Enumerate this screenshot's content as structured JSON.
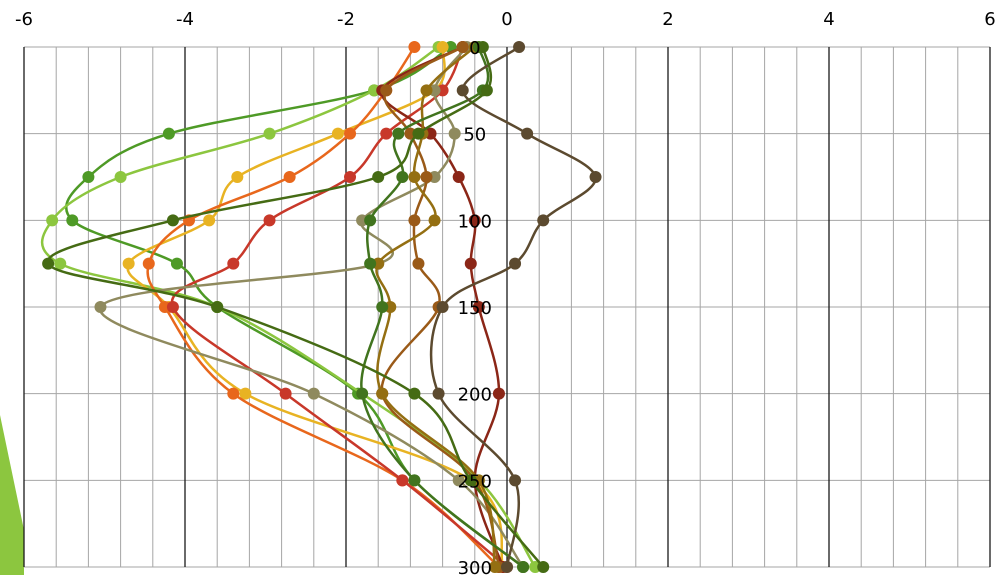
{
  "chart_data": {
    "type": "line",
    "title": "",
    "xlabel": "",
    "ylabel": "",
    "xlim": [
      -6,
      6
    ],
    "ylim": [
      0,
      300
    ],
    "y_inverted": true,
    "grid": true,
    "legend": "none",
    "x_major_ticks": [
      -6,
      -4,
      -2,
      0,
      2,
      4,
      6
    ],
    "y_major_ticks": [
      0,
      50,
      100,
      150,
      200,
      250,
      300
    ],
    "x_tick_labels": [
      "-6",
      "-4",
      "-2",
      "0",
      "2",
      "4",
      "6"
    ],
    "y_tick_labels": [
      "0",
      "50",
      "100",
      "150",
      "200",
      "250",
      "300"
    ],
    "depths": [
      0,
      25,
      50,
      75,
      100,
      125,
      150,
      200,
      250,
      300
    ],
    "series": [
      {
        "color": "#4e9a26",
        "x": [
          -0.7,
          -1.65,
          -4.2,
          -5.2,
          -5.4,
          -4.1,
          -3.6,
          -1.85,
          -1.15,
          0.2
        ]
      },
      {
        "color": "#8cc63f",
        "x": [
          -0.85,
          -1.65,
          -2.95,
          -4.8,
          -5.65,
          -5.55,
          -3.6,
          -1.8,
          -0.35,
          0.35
        ]
      },
      {
        "color": "#e8b323",
        "x": [
          -0.8,
          -0.9,
          -2.1,
          -3.35,
          -3.7,
          -4.7,
          -4.2,
          -3.25,
          -0.45,
          -0.05
        ]
      },
      {
        "color": "#e8671c",
        "x": [
          -1.15,
          -1.5,
          -1.95,
          -2.7,
          -3.95,
          -4.45,
          -4.25,
          -3.4,
          -1.3,
          -0.1
        ]
      },
      {
        "color": "#c8382a",
        "x": [
          -0.55,
          -0.8,
          -1.5,
          -1.95,
          -2.95,
          -3.4,
          -4.15,
          -2.75,
          -1.3,
          0.0
        ]
      },
      {
        "color": "#8b2617",
        "x": [
          -0.55,
          -1.55,
          -0.95,
          -0.6,
          -0.4,
          -0.45,
          -0.35,
          -0.1,
          -0.4,
          -0.05
        ]
      },
      {
        "color": "#8f8a5e",
        "x": [
          -0.5,
          -0.9,
          -0.65,
          -0.9,
          -1.8,
          -1.6,
          -5.05,
          -2.4,
          -0.6,
          0.2
        ]
      },
      {
        "color": "#9a5a18",
        "x": [
          -0.55,
          -1.5,
          -1.2,
          -1.0,
          -1.15,
          -1.1,
          -0.85,
          -1.55,
          -0.4,
          -0.1
        ]
      },
      {
        "color": "#946f12",
        "x": [
          -0.4,
          -1.0,
          -1.05,
          -1.15,
          -0.9,
          -1.6,
          -1.45,
          -1.55,
          -0.35,
          -0.15
        ]
      },
      {
        "color": "#41741e",
        "x": [
          -0.35,
          -0.3,
          -1.35,
          -1.3,
          -1.7,
          -1.7,
          -1.55,
          -1.8,
          -1.15,
          0.2
        ]
      },
      {
        "color": "#5c4a2f",
        "x": [
          0.15,
          -0.55,
          0.25,
          1.1,
          0.45,
          0.1,
          -0.8,
          -0.85,
          0.1,
          0.0
        ]
      },
      {
        "color": "#456b14",
        "x": [
          -0.3,
          -0.25,
          -1.1,
          -1.6,
          -4.15,
          -5.7,
          -3.6,
          -1.15,
          -0.45,
          0.45
        ]
      }
    ]
  }
}
